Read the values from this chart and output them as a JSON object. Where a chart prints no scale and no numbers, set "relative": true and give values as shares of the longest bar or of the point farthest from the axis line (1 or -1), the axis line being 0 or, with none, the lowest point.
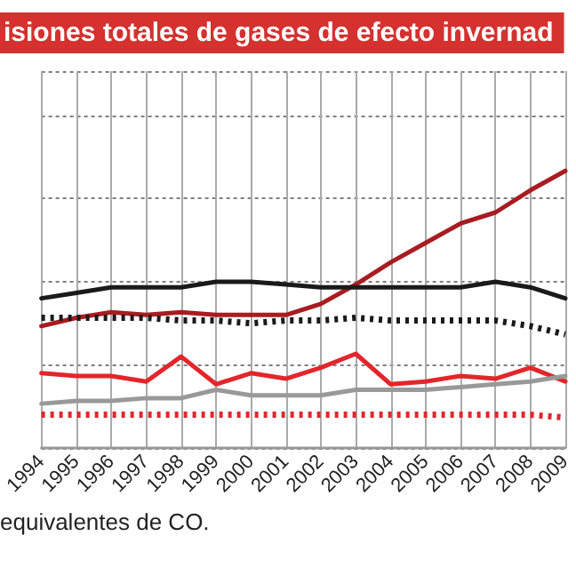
{
  "chart_data": {
    "type": "line",
    "title": "isiones totales de gases de efecto invernad",
    "relative": true,
    "grid": true,
    "marker": "none",
    "categories": [
      "1994",
      "1995",
      "1996",
      "1997",
      "1998",
      "1999",
      "2000",
      "2001",
      "2002",
      "2003",
      "2004",
      "2005",
      "2006",
      "2007",
      "2008",
      "2009"
    ],
    "series": [
      {
        "color": "#a81c22",
        "line_style": "solid",
        "values": [
          0.44,
          0.47,
          0.49,
          0.48,
          0.49,
          0.48,
          0.48,
          0.48,
          0.52,
          0.59,
          0.67,
          0.74,
          0.81,
          0.85,
          0.93,
          1.0
        ]
      },
      {
        "color": "#1a1a1a",
        "line_style": "solid",
        "values": [
          0.54,
          0.56,
          0.58,
          0.58,
          0.58,
          0.6,
          0.6,
          0.59,
          0.58,
          0.58,
          0.58,
          0.58,
          0.58,
          0.6,
          0.58,
          0.54
        ]
      },
      {
        "color": "#1a1a1a",
        "line_style": "dotted",
        "values": [
          0.47,
          0.47,
          0.47,
          0.47,
          0.46,
          0.46,
          0.45,
          0.46,
          0.46,
          0.47,
          0.46,
          0.46,
          0.46,
          0.46,
          0.44,
          0.41
        ]
      },
      {
        "color": "#e3262b",
        "line_style": "solid",
        "values": [
          0.27,
          0.26,
          0.26,
          0.24,
          0.33,
          0.23,
          0.27,
          0.25,
          0.29,
          0.34,
          0.23,
          0.24,
          0.26,
          0.25,
          0.29,
          0.24
        ]
      },
      {
        "color": "#999999",
        "line_style": "solid",
        "values": [
          0.16,
          0.17,
          0.17,
          0.18,
          0.18,
          0.21,
          0.19,
          0.19,
          0.19,
          0.21,
          0.21,
          0.21,
          0.22,
          0.23,
          0.24,
          0.26
        ]
      },
      {
        "color": "#e3262b",
        "line_style": "dotted",
        "values": [
          0.12,
          0.12,
          0.12,
          0.12,
          0.12,
          0.12,
          0.12,
          0.12,
          0.12,
          0.12,
          0.12,
          0.12,
          0.12,
          0.12,
          0.12,
          0.11
        ]
      }
    ],
    "annotations": [
      "equivalentes de CO."
    ]
  }
}
